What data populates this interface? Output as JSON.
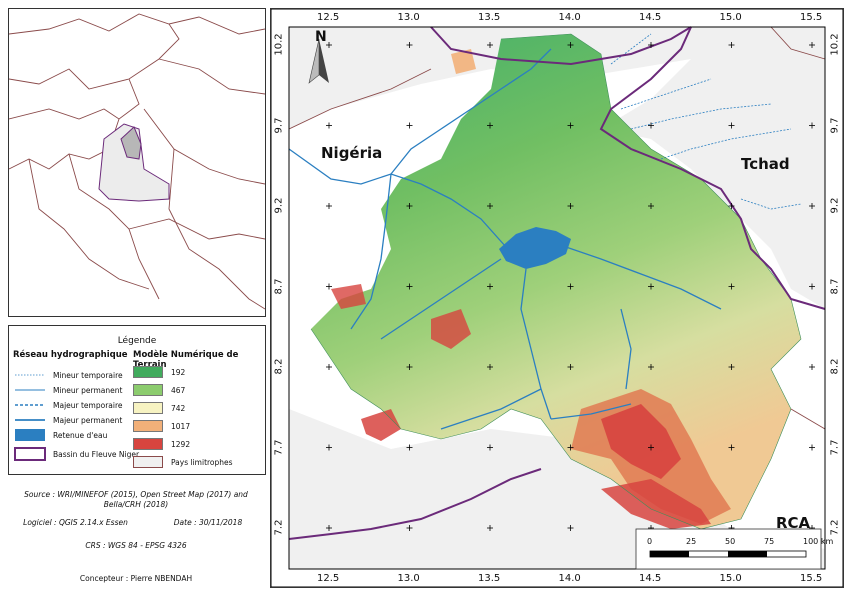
{
  "map": {
    "country_labels": {
      "nigeria": "Nigéria",
      "tchad": "Tchad",
      "rca": "RCA"
    },
    "north_label": "N",
    "longitude_ticks": [
      "12.5",
      "13.0",
      "13.5",
      "14.0",
      "14.5",
      "15.0",
      "15.5"
    ],
    "latitude_ticks": [
      "10.2",
      "9.7",
      "9.2",
      "8.7",
      "8.2",
      "7.7",
      "7.2"
    ],
    "scale_bar": {
      "labels": [
        "0",
        "25",
        "50",
        "75",
        "100 km"
      ]
    },
    "colors": {
      "water": "#2b7fc1",
      "basin_outline": "#6b2a7a",
      "neighbor_fill": "#f0f0f0",
      "dem_low": "#3fae6a",
      "dem_mid": "#e6e39a",
      "dem_high": "#d9433f"
    }
  },
  "legend": {
    "title": "Légende",
    "hydro_header": "Réseau hydrographique",
    "dem_header": "Modèle Numérique de Terrain",
    "hydro_items": [
      "Mineur temporaire",
      "Mineur permanent",
      "Majeur temporaire",
      "Majeur permanent",
      "Retenue d'eau",
      "Bassin du Fleuve Niger"
    ],
    "dem_items": [
      {
        "label": "192",
        "color": "#41ab5d"
      },
      {
        "label": "467",
        "color": "#8ccc6e"
      },
      {
        "label": "742",
        "color": "#f7f3c2"
      },
      {
        "label": "1017",
        "color": "#f2b079"
      },
      {
        "label": "1292",
        "color": "#d7443f"
      }
    ],
    "neighbors_label": "Pays limitrophes"
  },
  "credits": {
    "source_line1": "Source : WRI/MINEFOF (2015), Open Street Map (2017) and",
    "source_line2": "Bella/CRH (2018)",
    "software": "Logiciel : QGIS 2.14.x Essen",
    "date": "Date : 30/11/2018",
    "crs": "CRS : WGS 84 - EPSG 4326",
    "designer": "Concepteur : Pierre NBENDAH"
  }
}
